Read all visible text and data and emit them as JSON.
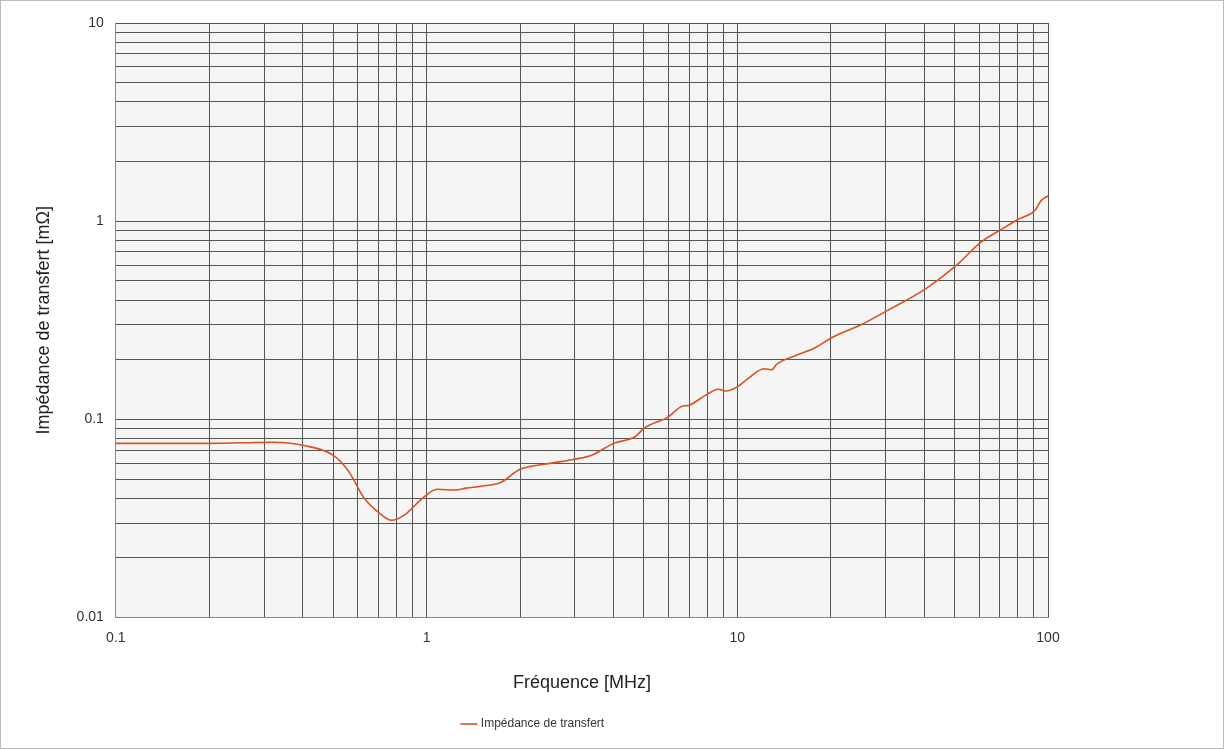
{
  "chart_data": {
    "type": "line",
    "xlabel": "Fréquence [MHz]",
    "ylabel": "Impédance de transfert [mΩ]",
    "log": "xy",
    "grid": true,
    "legend": "bottom",
    "marker": "none",
    "line_style": "solid",
    "xlim": [
      0.1,
      100
    ],
    "ylim": [
      0.01,
      10
    ],
    "xticks": [
      0.1,
      {
        "value": 0.2,
        "label": null
      },
      {
        "value": 0.3,
        "label": null
      },
      {
        "value": 0.4,
        "label": null
      },
      {
        "value": 0.5,
        "label": null
      },
      {
        "value": 0.6,
        "label": null
      },
      {
        "value": 0.7,
        "label": null
      },
      {
        "value": 0.8,
        "label": null
      },
      {
        "value": 0.9,
        "label": null
      },
      1,
      {
        "value": 2,
        "label": null
      },
      {
        "value": 3,
        "label": null
      },
      {
        "value": 4,
        "label": null
      },
      {
        "value": 5,
        "label": null
      },
      {
        "value": 6,
        "label": null
      },
      {
        "value": 7,
        "label": null
      },
      {
        "value": 8,
        "label": null
      },
      {
        "value": 9,
        "label": null
      },
      10,
      {
        "value": 20,
        "label": null
      },
      {
        "value": 30,
        "label": null
      },
      {
        "value": 40,
        "label": null
      },
      {
        "value": 50,
        "label": null
      },
      {
        "value": 60,
        "label": null
      },
      {
        "value": 70,
        "label": null
      },
      {
        "value": 80,
        "label": null
      },
      {
        "value": 90,
        "label": null
      },
      100
    ],
    "yticks": [
      0.01,
      {
        "value": 0.02,
        "label": null
      },
      {
        "value": 0.03,
        "label": null
      },
      {
        "value": 0.04,
        "label": null
      },
      {
        "value": 0.05,
        "label": null
      },
      {
        "value": 0.06,
        "label": null
      },
      {
        "value": 0.07,
        "label": null
      },
      {
        "value": 0.08,
        "label": null
      },
      {
        "value": 0.09,
        "label": null
      },
      0.1,
      {
        "value": 0.2,
        "label": null
      },
      {
        "value": 0.3,
        "label": null
      },
      {
        "value": 0.4,
        "label": null
      },
      {
        "value": 0.5,
        "label": null
      },
      {
        "value": 0.6,
        "label": null
      },
      {
        "value": 0.7,
        "label": null
      },
      {
        "value": 0.8,
        "label": null
      },
      {
        "value": 0.9,
        "label": null
      },
      1,
      {
        "value": 2,
        "label": null
      },
      {
        "value": 3,
        "label": null
      },
      {
        "value": 4,
        "label": null
      },
      {
        "value": 5,
        "label": null
      },
      {
        "value": 6,
        "label": null
      },
      {
        "value": 7,
        "label": null
      },
      {
        "value": 8,
        "label": null
      },
      {
        "value": 9,
        "label": null
      },
      10
    ],
    "series": [
      {
        "name": "Impédance de transfert",
        "color": "#d9531e",
        "x": [
          0.1,
          0.2,
          0.32,
          0.4,
          0.5,
          0.56,
          0.63,
          0.7,
          0.77,
          0.85,
          0.97,
          1.08,
          1.24,
          1.34,
          1.5,
          1.73,
          2,
          2.5,
          3,
          3.4,
          4,
          4.7,
          5,
          6,
          6.6,
          7,
          8,
          8.7,
          9.2,
          10,
          10.8,
          12.2,
          12.9,
          13.4,
          15.4,
          17.8,
          20.2,
          25,
          30.5,
          40.7,
          50.8,
          60.6,
          70.8,
          81,
          90.6,
          95,
          100
        ],
        "values": [
          0.0757,
          0.0757,
          0.0767,
          0.074,
          0.066,
          0.055,
          0.04,
          0.034,
          0.031,
          0.033,
          0.04,
          0.0444,
          0.044,
          0.045,
          0.046,
          0.048,
          0.056,
          0.06,
          0.063,
          0.066,
          0.0757,
          0.082,
          0.09,
          0.103,
          0.116,
          0.118,
          0.134,
          0.142,
          0.139,
          0.146,
          0.16,
          0.18,
          0.178,
          0.19,
          0.21,
          0.23,
          0.259,
          0.3,
          0.355,
          0.46,
          0.6,
          0.78,
          0.91,
          1.03,
          1.13,
          1.27,
          1.34
        ]
      }
    ]
  }
}
